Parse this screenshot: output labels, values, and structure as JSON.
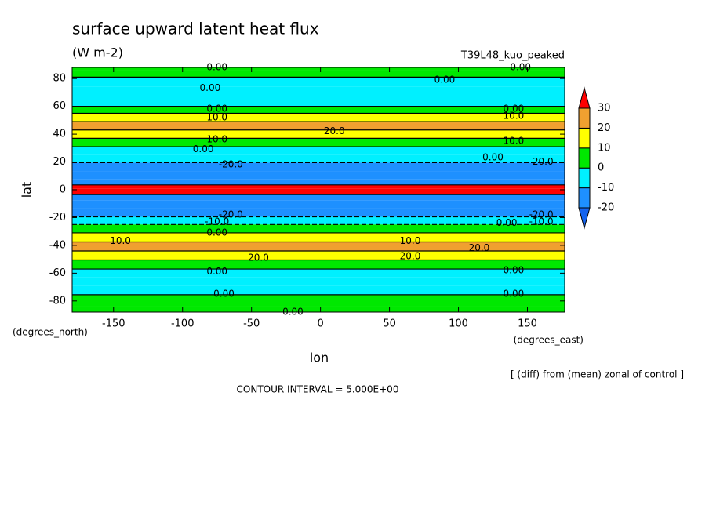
{
  "chart_data": {
    "type": "contour",
    "title": "surface upward latent heat flux",
    "subtitle": "(W m-2)",
    "dataset": "T39L48_kuo_peaked",
    "x_label": "lon",
    "y_label": "lat",
    "x_units": "(degrees_east)",
    "y_units": "(degrees_north)",
    "note": "[ (diff) from (mean) zonal of control ]",
    "contour_interval": "CONTOUR INTERVAL = 5.000E+00",
    "xlim": [
      -180,
      177
    ],
    "ylim": [
      -88,
      88
    ],
    "xticks": [
      -150,
      -100,
      -50,
      0,
      50,
      100,
      150
    ],
    "yticks": [
      -80,
      -60,
      -40,
      -20,
      0,
      20,
      40,
      60,
      80
    ],
    "lat": [
      88,
      84,
      78,
      70,
      62,
      58,
      52,
      46,
      40,
      34,
      28,
      22,
      17,
      10,
      5,
      2,
      0,
      -2,
      -5,
      -10,
      -17,
      -22,
      -28,
      -34,
      -41,
      -47,
      -54,
      -60,
      -66,
      -72,
      -79,
      -88
    ],
    "values": [
      2,
      3,
      -3,
      -5,
      -2,
      5,
      12,
      22,
      15,
      8,
      -5,
      -8,
      -15,
      -18,
      -15,
      35,
      40,
      35,
      -15,
      -18,
      -15,
      -5,
      3,
      12,
      22,
      15,
      8,
      -2,
      -5,
      -3,
      3,
      2
    ],
    "levels": [
      -20,
      -10,
      0,
      10,
      20,
      30
    ],
    "colors": [
      "#1464f0",
      "#1e90ff",
      "#00f0ff",
      "#00e800",
      "#ffff00",
      "#f0a030",
      "#ff0000"
    ],
    "contour_labels": [
      {
        "value": 0,
        "label": "0.00",
        "lon": -75,
        "lat": 88
      },
      {
        "value": 0,
        "label": "0.00",
        "lon": -80,
        "lat": 73
      },
      {
        "value": 0,
        "label": "0.00",
        "lon": 90,
        "lat": 79
      },
      {
        "value": 0,
        "label": "0.00",
        "lon": 145,
        "lat": 88
      },
      {
        "value": 0,
        "label": "0.00",
        "lon": -75,
        "lat": 58
      },
      {
        "value": 10,
        "label": "10.0",
        "lon": -75,
        "lat": 52
      },
      {
        "value": 0,
        "label": "0.00",
        "lon": 140,
        "lat": 58
      },
      {
        "value": 10,
        "label": "10.0",
        "lon": 140,
        "lat": 53
      },
      {
        "value": 20,
        "label": "20.0",
        "lon": 10,
        "lat": 42
      },
      {
        "value": 10,
        "label": "10.0",
        "lon": -75,
        "lat": 36
      },
      {
        "value": 10,
        "label": "10.0",
        "lon": 140,
        "lat": 35
      },
      {
        "value": 0,
        "label": "0.00",
        "lon": -85,
        "lat": 29
      },
      {
        "value": 0,
        "label": "0.00",
        "lon": 125,
        "lat": 23
      },
      {
        "value": -20,
        "label": "-20.0",
        "lon": -65,
        "lat": 18
      },
      {
        "value": -20,
        "label": "-20.0",
        "lon": 160,
        "lat": 20
      },
      {
        "value": -20,
        "label": "-20.0",
        "lon": -65,
        "lat": -18
      },
      {
        "value": -20,
        "label": "-20.0",
        "lon": 160,
        "lat": -18
      },
      {
        "value": -10,
        "label": "-10.0",
        "lon": -75,
        "lat": -23
      },
      {
        "value": -10,
        "label": "-10.0",
        "lon": 160,
        "lat": -23
      },
      {
        "value": 0,
        "label": "0.00",
        "lon": 135,
        "lat": -24
      },
      {
        "value": 0,
        "label": "0.00",
        "lon": -75,
        "lat": -31
      },
      {
        "value": 10,
        "label": "10.0",
        "lon": -145,
        "lat": -37
      },
      {
        "value": 10,
        "label": "10.0",
        "lon": 65,
        "lat": -37
      },
      {
        "value": 20,
        "label": "20.0",
        "lon": -45,
        "lat": -49
      },
      {
        "value": 20,
        "label": "20.0",
        "lon": 65,
        "lat": -48
      },
      {
        "value": 20,
        "label": "20.0",
        "lon": 115,
        "lat": -42
      },
      {
        "value": 0,
        "label": "0.00",
        "lon": -75,
        "lat": -59
      },
      {
        "value": 0,
        "label": "0.00",
        "lon": 140,
        "lat": -58
      },
      {
        "value": 0,
        "label": "0.00",
        "lon": -70,
        "lat": -75
      },
      {
        "value": 0,
        "label": "0.00",
        "lon": 140,
        "lat": -75
      },
      {
        "value": 0,
        "label": "0.00",
        "lon": -20,
        "lat": -88
      }
    ]
  }
}
